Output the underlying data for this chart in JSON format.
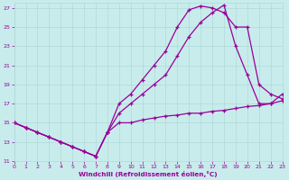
{
  "xlabel": "Windchill (Refroidissement éolien,°C)",
  "background_color": "#c8ecec",
  "grid_color": "#b0d8d8",
  "line_color": "#990099",
  "xlim": [
    0,
    23
  ],
  "ylim": [
    11,
    27.5
  ],
  "xticks": [
    0,
    1,
    2,
    3,
    4,
    5,
    6,
    7,
    8,
    9,
    10,
    11,
    12,
    13,
    14,
    15,
    16,
    17,
    18,
    19,
    20,
    21,
    22,
    23
  ],
  "yticks": [
    11,
    13,
    15,
    17,
    19,
    21,
    23,
    25,
    27
  ],
  "line1_x": [
    0,
    1,
    2,
    3,
    4,
    5,
    6,
    7,
    8,
    9,
    10,
    11,
    12,
    13,
    14,
    15,
    16,
    17,
    18,
    19,
    20,
    21,
    22,
    23
  ],
  "line1_y": [
    15,
    14.5,
    14,
    13.5,
    13,
    12.5,
    12,
    11.5,
    14,
    17,
    18,
    19.5,
    21,
    22.5,
    25,
    26.8,
    27.2,
    27,
    26.5,
    25,
    25,
    19,
    18,
    17.5
  ],
  "line2_x": [
    0,
    1,
    2,
    3,
    4,
    5,
    6,
    7,
    8,
    9,
    10,
    11,
    12,
    13,
    14,
    15,
    16,
    17,
    18,
    19,
    20,
    21,
    22,
    23
  ],
  "line2_y": [
    15,
    14.5,
    14,
    13.5,
    13,
    12.5,
    12,
    11.5,
    14,
    16,
    17,
    18,
    19,
    20,
    22,
    24,
    25.5,
    26.5,
    27.3,
    23,
    20,
    17,
    17,
    18
  ],
  "line3_x": [
    0,
    1,
    2,
    3,
    4,
    5,
    6,
    7,
    8,
    9,
    10,
    11,
    12,
    13,
    14,
    15,
    16,
    17,
    18,
    19,
    20,
    21,
    22,
    23
  ],
  "line3_y": [
    15,
    14.5,
    14,
    13.5,
    13,
    12.5,
    12,
    11.5,
    14,
    15,
    15,
    15.3,
    15.5,
    15.7,
    15.8,
    16,
    16,
    16.2,
    16.3,
    16.5,
    16.7,
    16.8,
    17,
    17.3
  ]
}
